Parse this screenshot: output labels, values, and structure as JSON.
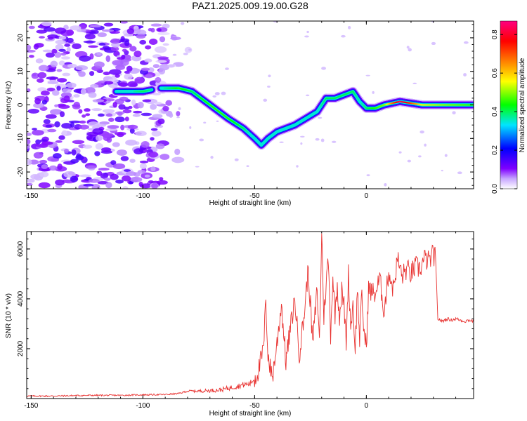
{
  "chart_data": [
    {
      "type": "heatmap",
      "title": "PAZ1.2025.009.19.00.G28",
      "xlabel": "Height of straight line (km)",
      "ylabel": "Frequency (Hz)",
      "xlim": [
        -152,
        48
      ],
      "ylim": [
        -25,
        25
      ],
      "xticks": [
        -150,
        -100,
        -50,
        0
      ],
      "yticks": [
        -20,
        -10,
        0,
        10,
        20
      ],
      "colorbar": {
        "label": "Normalized spectral amplitude",
        "range": [
          0.0,
          0.87
        ],
        "ticks": [
          0.0,
          0.2,
          0.4,
          0.6,
          0.8
        ],
        "colors": [
          "#ffffff",
          "#c7a6ff",
          "#7f00ff",
          "#0000ff",
          "#00e5ff",
          "#00ff00",
          "#ffff00",
          "#ff7f00",
          "#ff0000",
          "#ff0080"
        ]
      },
      "ridge": {
        "x": [
          -112,
          -100,
          -92,
          -84,
          -78,
          -70,
          -62,
          -55,
          -50,
          -47,
          -44,
          -40,
          -36,
          -32,
          -27,
          -22,
          -18,
          -14,
          -10,
          -6,
          -3,
          0,
          4,
          8,
          15,
          25,
          35,
          48
        ],
        "y": [
          4,
          4,
          5,
          5,
          4,
          0,
          -4,
          -7,
          -10,
          -12,
          -10,
          -8,
          -7,
          -6,
          -4,
          -2,
          2,
          2,
          3,
          4,
          1,
          -1,
          -1,
          0,
          1,
          0,
          0,
          0
        ],
        "amp": [
          0.3,
          0.4,
          0.35,
          0.45,
          0.4,
          0.45,
          0.45,
          0.4,
          0.3,
          0.25,
          0.3,
          0.35,
          0.3,
          0.3,
          0.35,
          0.35,
          0.4,
          0.4,
          0.4,
          0.4,
          0.35,
          0.4,
          0.45,
          0.5,
          0.85,
          0.55,
          0.5,
          0.45
        ]
      }
    },
    {
      "type": "line",
      "xlabel": "Height of straight line (km)",
      "ylabel": "SNR (10 * v/v)",
      "xlim": [
        -152,
        48
      ],
      "ylim": [
        0,
        6700
      ],
      "xticks": [
        -150,
        -100,
        -50,
        0
      ],
      "yticks": [
        2000,
        4000,
        6000
      ],
      "color": "#e8312f",
      "series": [
        {
          "x": [
            -152,
            -140,
            -130,
            -120,
            -110,
            -100,
            -90,
            -84,
            -80,
            -75,
            -70,
            -65,
            -60,
            -55,
            -52,
            -50,
            -48,
            -46,
            -45,
            -44,
            -43,
            -42,
            -40,
            -38,
            -36,
            -34,
            -32,
            -30,
            -28,
            -26,
            -24,
            -22,
            -21,
            -20,
            -19,
            -18,
            -17,
            -16,
            -15,
            -14,
            -13,
            -12,
            -11,
            -10,
            -9,
            -8,
            -7,
            -6,
            -5,
            -4,
            -3,
            -2,
            -1,
            0,
            1,
            2,
            4,
            6,
            8,
            10,
            12,
            14,
            16,
            18,
            20,
            22,
            24,
            26,
            28,
            30,
            31,
            32,
            34,
            36,
            38,
            40,
            42,
            44,
            46,
            48
          ],
          "y": [
            100,
            100,
            120,
            130,
            130,
            150,
            160,
            200,
            300,
            300,
            320,
            350,
            450,
            550,
            600,
            800,
            1200,
            2000,
            3900,
            1800,
            1200,
            900,
            2200,
            3800,
            1500,
            2800,
            4000,
            1800,
            3200,
            5200,
            2200,
            4400,
            2200,
            6700,
            3300,
            4600,
            5600,
            2600,
            4900,
            3400,
            4600,
            3300,
            4300,
            3700,
            2300,
            5000,
            2900,
            3800,
            2000,
            4400,
            2400,
            4100,
            2600,
            2100,
            4400,
            4300,
            4200,
            4800,
            3500,
            5100,
            4400,
            5600,
            4900,
            5200,
            5000,
            5300,
            5200,
            5600,
            5500,
            5800,
            5600,
            3200,
            3100,
            3200,
            3150,
            3200,
            3150,
            3100,
            3150,
            3100
          ]
        }
      ]
    }
  ]
}
